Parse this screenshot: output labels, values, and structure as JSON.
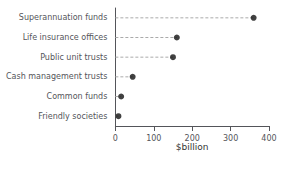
{
  "chart_data": {
    "type": "lollipop",
    "orientation": "horizontal",
    "categories": [
      "Superannuation funds",
      "Life insurance offices",
      "Public unit trusts",
      "Cash management trusts",
      "Common funds",
      "Friendly societies"
    ],
    "values": [
      360,
      160,
      150,
      45,
      15,
      8
    ],
    "xlabel": "$billion",
    "xlim": [
      0,
      400
    ],
    "xticks": [
      0,
      100,
      200,
      300,
      400
    ],
    "color": "#111111",
    "marker": "circle",
    "line_style": "dashed",
    "grid": false
  }
}
